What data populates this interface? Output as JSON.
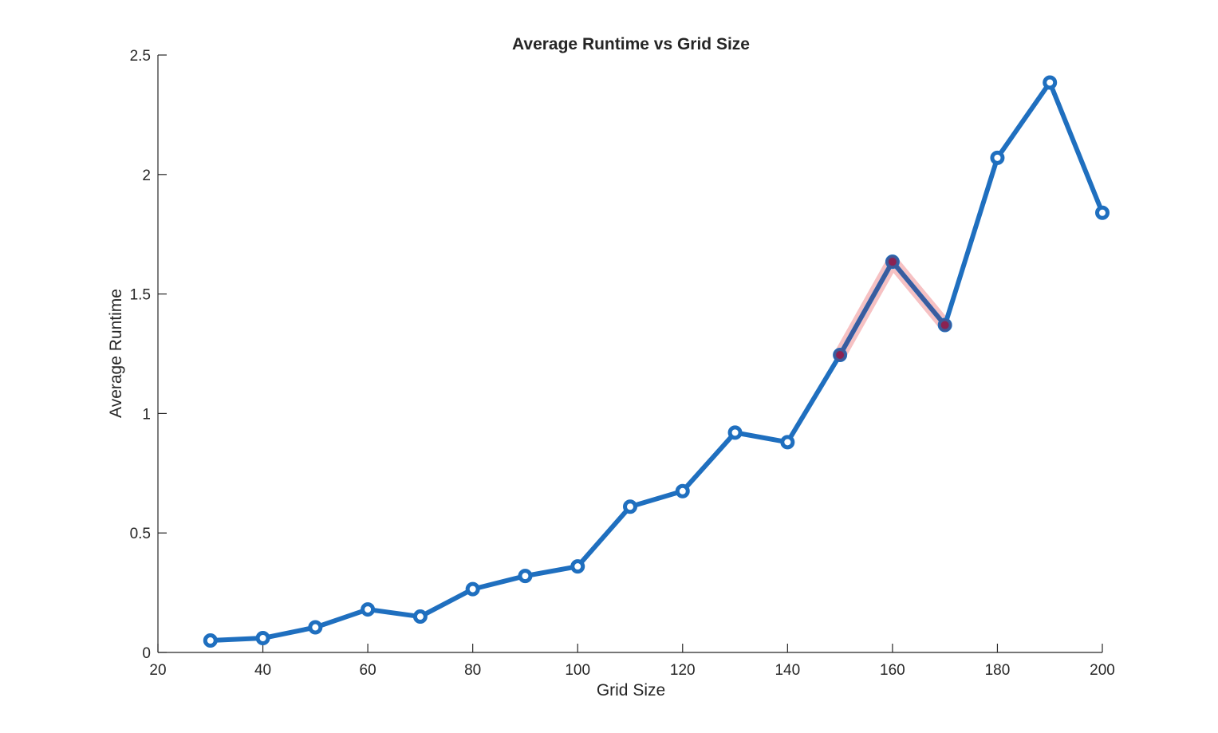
{
  "chart_data": {
    "type": "line",
    "title": "Average Runtime vs Grid Size",
    "xlabel": "Grid Size",
    "ylabel": "Average Runtime",
    "xlim": [
      20,
      200
    ],
    "ylim": [
      0,
      2.5
    ],
    "xticks": [
      20,
      40,
      60,
      80,
      100,
      120,
      140,
      160,
      180,
      200
    ],
    "yticks": [
      0,
      0.5,
      1,
      1.5,
      2,
      2.5
    ],
    "xtick_labels": [
      "20",
      "40",
      "60",
      "80",
      "100",
      "120",
      "140",
      "160",
      "180",
      "200"
    ],
    "ytick_labels": [
      "0",
      "0.5",
      "1",
      "1.5",
      "2",
      "2.5"
    ],
    "grid": false,
    "series": [
      {
        "x": [
          30,
          40,
          50,
          60,
          70,
          80,
          90,
          100,
          110,
          120,
          130,
          140,
          150,
          160,
          170,
          180,
          190,
          200
        ],
        "values": [
          0.05,
          0.06,
          0.105,
          0.18,
          0.15,
          0.265,
          0.32,
          0.36,
          0.61,
          0.675,
          0.92,
          0.88,
          1.245,
          1.635,
          1.37,
          2.07,
          2.385,
          1.84
        ],
        "color": "#1f6fbf",
        "marker": "circle"
      }
    ],
    "highlight": {
      "x": [
        150,
        160,
        170
      ],
      "values": [
        1.245,
        1.635,
        1.37
      ],
      "halo_color": "#f4b6b8",
      "marker_color": "#8b2252"
    }
  }
}
